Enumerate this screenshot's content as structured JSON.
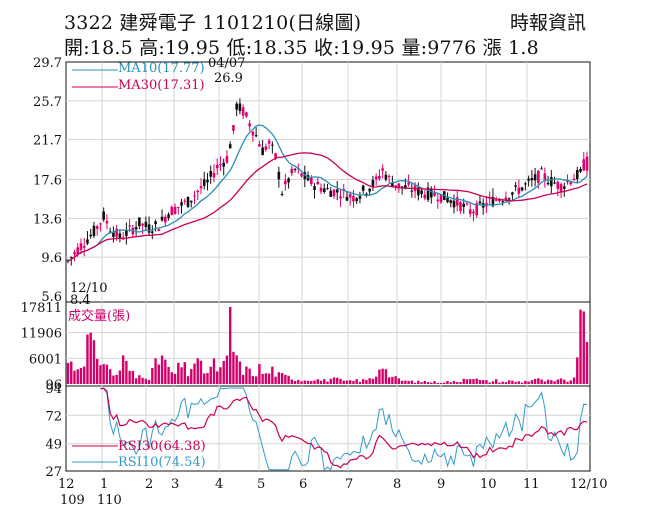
{
  "header": {
    "title": "3322  建舜電子 1101210(日線圖)",
    "stats": "開:18.5 高:19.95 低:18.35 收:19.95 量:9776 漲 1.8",
    "source": "時報資訊"
  },
  "colors": {
    "up": "#e0006e",
    "down": "#111111",
    "ma10": "#2a8db8",
    "ma30": "#cc0055",
    "volume": "#d4006a",
    "rsi30": "#cc0055",
    "rsi10": "#3399cc",
    "grid": "#d4d4d4"
  },
  "chart_data": [
    {
      "type": "candlestick",
      "x_ticks": [
        "12",
        "1",
        "2",
        "3",
        "4",
        "5",
        "6",
        "7",
        "8",
        "9",
        "10",
        "11",
        "12/10"
      ],
      "x_subticks": [
        "109",
        "110"
      ],
      "y_ticks": [
        "29.7",
        "25.7",
        "21.7",
        "17.6",
        "13.6",
        "9.6",
        "5.6"
      ],
      "ylim": [
        5.6,
        29.7
      ],
      "legend": [
        {
          "key": "ma10",
          "label": "MA10(17.77)"
        },
        {
          "key": "ma30",
          "label": "MA30(17.31)"
        }
      ],
      "annotations": {
        "high_date": "04/07",
        "high_value": "26.9",
        "low_date": "12/10",
        "low_value": "8.4"
      },
      "high_low": {
        "high": 26.9,
        "low": 8.4,
        "high_date": "04/07",
        "low_date": "12/10"
      },
      "price_path_estimate": [
        [
          0,
          9.2
        ],
        [
          4,
          10.8
        ],
        [
          8,
          12.2
        ],
        [
          11,
          13.8
        ],
        [
          13,
          12.6
        ],
        [
          16,
          11.6
        ],
        [
          19,
          12.3
        ],
        [
          22,
          13.1
        ],
        [
          25,
          12.6
        ],
        [
          28,
          12.9
        ],
        [
          31,
          14.2
        ],
        [
          34,
          14.8
        ],
        [
          37,
          15.3
        ],
        [
          40,
          16.4
        ],
        [
          43,
          17.3
        ],
        [
          46,
          18.9
        ],
        [
          49,
          19.8
        ],
        [
          51,
          22.6
        ],
        [
          52,
          25.2
        ],
        [
          54,
          24.6
        ],
        [
          56,
          23.4
        ],
        [
          58,
          22.1
        ],
        [
          60,
          20.6
        ],
        [
          62,
          21.3
        ],
        [
          64,
          19.9
        ],
        [
          66,
          16.3
        ],
        [
          68,
          17.6
        ],
        [
          70,
          18.6
        ],
        [
          73,
          17.8
        ],
        [
          76,
          17.1
        ],
        [
          80,
          16.5
        ],
        [
          84,
          16.3
        ],
        [
          88,
          15.8
        ],
        [
          92,
          16.6
        ],
        [
          95,
          17.4
        ],
        [
          97,
          18.6
        ],
        [
          99,
          17.6
        ],
        [
          102,
          16.9
        ],
        [
          106,
          16.6
        ],
        [
          110,
          16.2
        ],
        [
          114,
          16.0
        ],
        [
          118,
          15.5
        ],
        [
          121,
          15.0
        ],
        [
          124,
          14.3
        ],
        [
          127,
          14.7
        ],
        [
          130,
          15.3
        ],
        [
          134,
          15.8
        ],
        [
          138,
          16.4
        ],
        [
          142,
          17.2
        ],
        [
          146,
          18.1
        ],
        [
          149,
          17.4
        ],
        [
          152,
          16.9
        ],
        [
          155,
          17.6
        ],
        [
          158,
          18.2
        ],
        [
          160,
          19.95
        ]
      ]
    },
    {
      "type": "bar",
      "title": "成交量(張)",
      "y_ticks": [
        "17811",
        "11906",
        "6001",
        "96"
      ],
      "ylim": [
        96,
        17811
      ],
      "volume_estimate": [
        [
          0,
          5200
        ],
        [
          3,
          3800
        ],
        [
          5,
          7200
        ],
        [
          7,
          11200
        ],
        [
          9,
          4100
        ],
        [
          11,
          6800
        ],
        [
          13,
          2900
        ],
        [
          15,
          2100
        ],
        [
          17,
          5600
        ],
        [
          19,
          3300
        ],
        [
          21,
          1500
        ],
        [
          23,
          2600
        ],
        [
          25,
          1800
        ],
        [
          27,
          4200
        ],
        [
          29,
          6800
        ],
        [
          31,
          3100
        ],
        [
          33,
          2400
        ],
        [
          35,
          4600
        ],
        [
          37,
          2700
        ],
        [
          39,
          5400
        ],
        [
          41,
          3800
        ],
        [
          43,
          2900
        ],
        [
          45,
          4400
        ],
        [
          47,
          3300
        ],
        [
          49,
          5100
        ],
        [
          50,
          17811
        ],
        [
          51,
          8200
        ],
        [
          52,
          6400
        ],
        [
          53,
          3900
        ],
        [
          55,
          3200
        ],
        [
          57,
          2500
        ],
        [
          59,
          3600
        ],
        [
          61,
          2200
        ],
        [
          63,
          3400
        ],
        [
          65,
          2100
        ],
        [
          67,
          1800
        ],
        [
          69,
          1500
        ],
        [
          71,
          1200
        ],
        [
          73,
          1000
        ],
        [
          75,
          1400
        ],
        [
          77,
          1100
        ],
        [
          79,
          900
        ],
        [
          81,
          1300
        ],
        [
          83,
          1100
        ],
        [
          85,
          800
        ],
        [
          87,
          700
        ],
        [
          89,
          1000
        ],
        [
          91,
          900
        ],
        [
          93,
          1200
        ],
        [
          95,
          2200
        ],
        [
          97,
          6500
        ],
        [
          98,
          3100
        ],
        [
          100,
          1600
        ],
        [
          102,
          1100
        ],
        [
          104,
          800
        ],
        [
          106,
          700
        ],
        [
          108,
          600
        ],
        [
          110,
          700
        ],
        [
          112,
          600
        ],
        [
          114,
          500
        ],
        [
          116,
          600
        ],
        [
          118,
          700
        ],
        [
          120,
          500
        ],
        [
          122,
          1400
        ],
        [
          124,
          2100
        ],
        [
          126,
          1100
        ],
        [
          128,
          800
        ],
        [
          130,
          700
        ],
        [
          132,
          900
        ],
        [
          134,
          600
        ],
        [
          136,
          800
        ],
        [
          138,
          700
        ],
        [
          140,
          600
        ],
        [
          142,
          900
        ],
        [
          144,
          1300
        ],
        [
          146,
          900
        ],
        [
          148,
          800
        ],
        [
          150,
          700
        ],
        [
          152,
          1000
        ],
        [
          154,
          900
        ],
        [
          156,
          1100
        ],
        [
          158,
          17200
        ],
        [
          159,
          16800
        ],
        [
          160,
          9776
        ]
      ]
    },
    {
      "type": "line",
      "y_ticks": [
        "94",
        "72",
        "49",
        "27"
      ],
      "ylim": [
        27,
        94
      ],
      "legend": [
        {
          "key": "rsi30",
          "label": "RSI30(64.38)"
        },
        {
          "key": "rsi10",
          "label": "RSI10(74.54)"
        }
      ]
    }
  ]
}
